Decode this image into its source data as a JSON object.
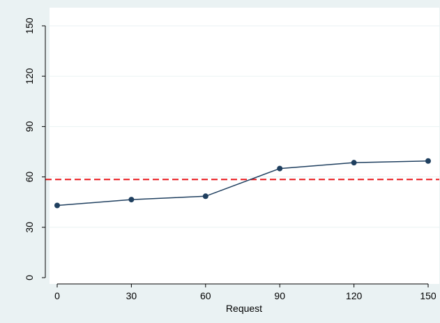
{
  "chart_data": {
    "type": "line",
    "title": "",
    "xlabel": "Request",
    "ylabel": "",
    "xlim": [
      0,
      150
    ],
    "ylim": [
      0,
      150
    ],
    "xticks": [
      0,
      30,
      60,
      90,
      120,
      150
    ],
    "yticks": [
      0,
      30,
      60,
      90,
      120,
      150
    ],
    "grid": "horizontal",
    "series": [
      {
        "x": [
          0,
          30,
          60,
          90,
          120,
          150
        ],
        "y": [
          43,
          46.5,
          48.5,
          65,
          68.5,
          69.5
        ],
        "color": "#1f3f5f",
        "marker": "circle"
      }
    ],
    "reference_lines": [
      {
        "orientation": "horizontal",
        "y": 58.5,
        "color": "#e8161a",
        "style": "dashed"
      }
    ]
  },
  "colors": {
    "background": "#eaf2f3",
    "plot_area": "#ffffff",
    "gridline": "#eaf2f3",
    "series": "#1f3f5f",
    "reference": "#e8161a"
  }
}
